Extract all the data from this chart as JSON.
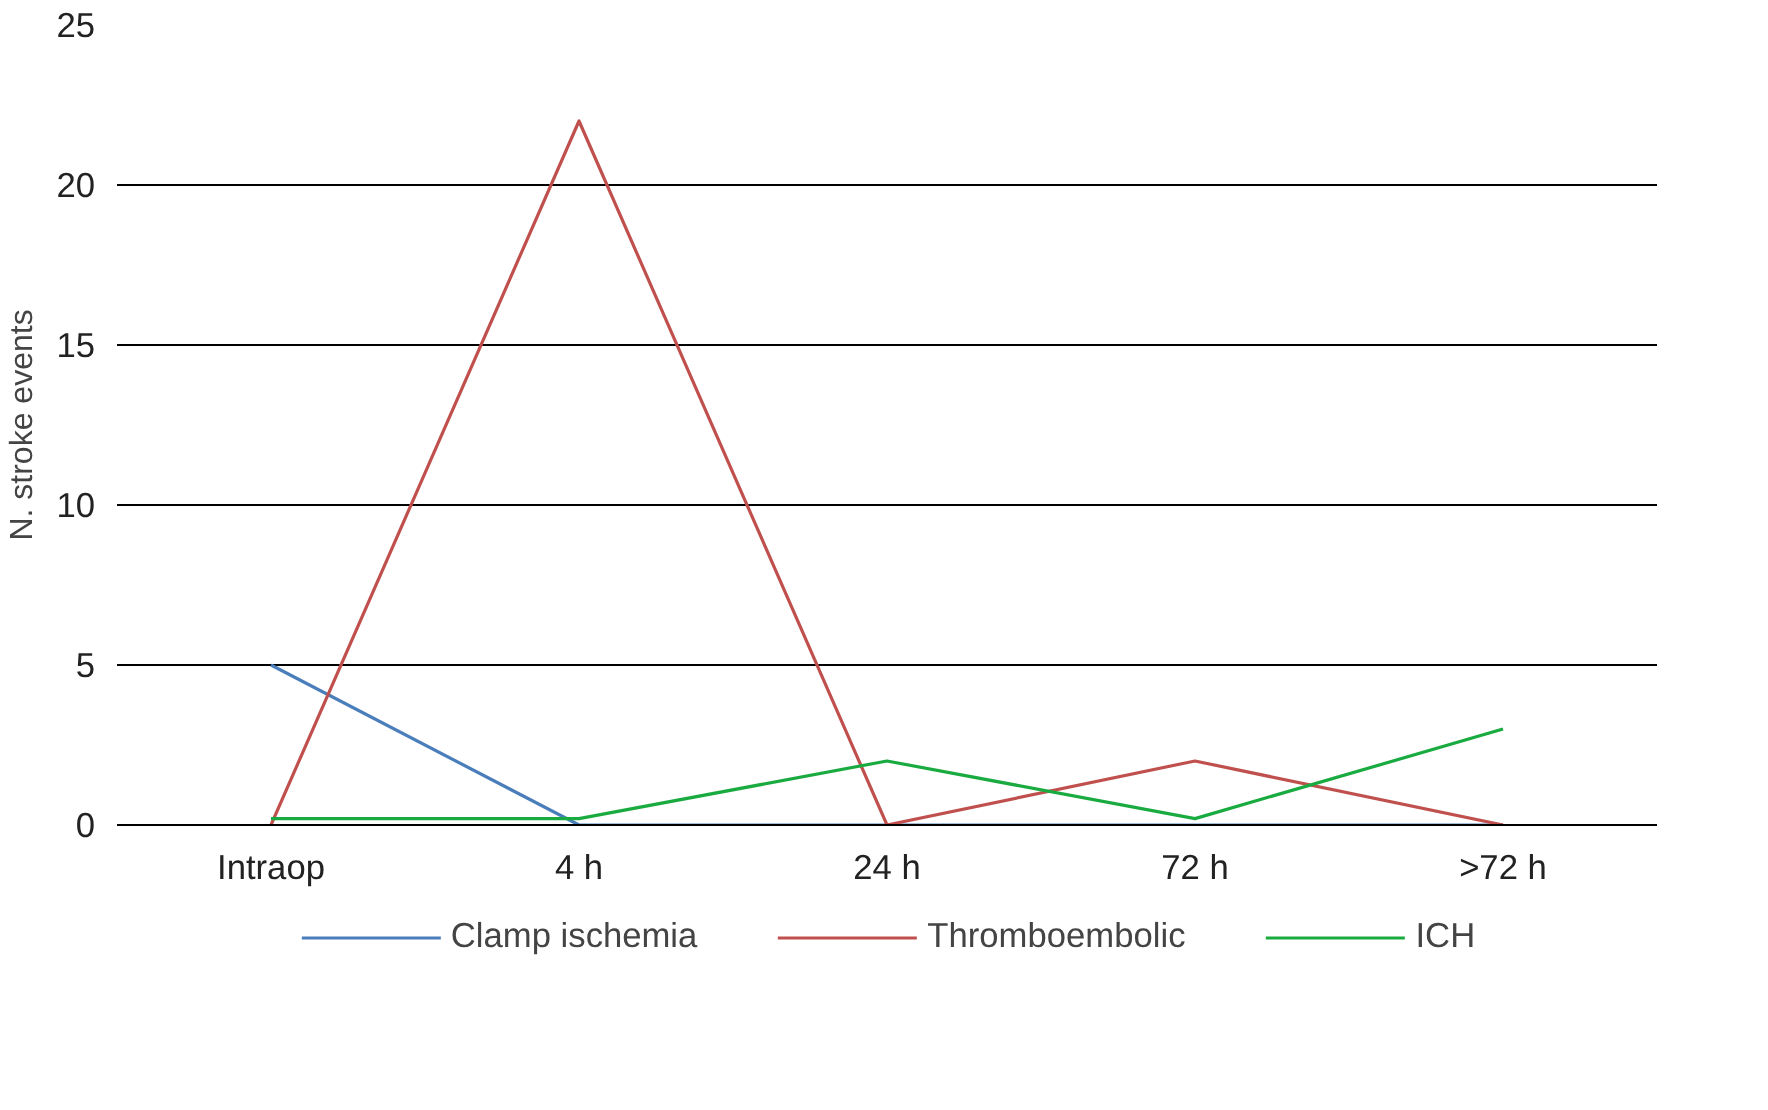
{
  "chart_data": {
    "type": "line",
    "ylabel": "N. stroke events",
    "categories": [
      "Intraop",
      "4 h",
      "24 h",
      "72 h",
      ">72 h"
    ],
    "ylim": [
      0,
      25
    ],
    "yticks": [
      0,
      5,
      10,
      15,
      20,
      25
    ],
    "grid": "y",
    "legend": "bottom",
    "marker": "none",
    "series": [
      {
        "name": "Clamp ischemia",
        "color": "#4a7ebb",
        "values": [
          5,
          0,
          0,
          0,
          0
        ]
      },
      {
        "name": "Thromboembolic",
        "color": "#c0504d",
        "values": [
          0,
          22,
          0,
          2,
          0
        ]
      },
      {
        "name": "ICH",
        "color": "#1aab40",
        "values": [
          0.2,
          0.2,
          2,
          0.2,
          3
        ]
      }
    ]
  }
}
